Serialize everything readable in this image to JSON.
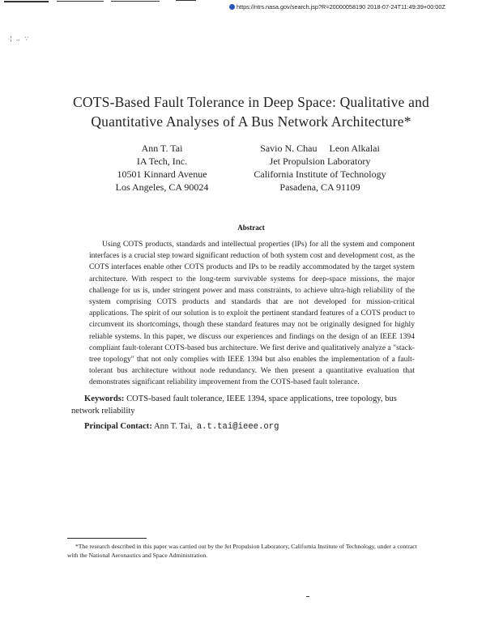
{
  "header": {
    "url_stamp": "https://ntrs.nasa.gov/search.jsp?R=20000058190 2018-07-24T11:49:39+00:00Z",
    "icon": "ntrs-logo-icon"
  },
  "paper": {
    "title_line1": "COTS-Based Fault Tolerance in Deep Space: Qualitative and",
    "title_line2": "Quantitative Analyses of A Bus Network Architecture*",
    "authors_left": [
      "Ann T. Tai",
      "IA Tech, Inc.",
      "10501 Kinnard Avenue",
      "Los Angeles, CA 90024"
    ],
    "authors_right_names": "Savio N. Chau     Leon Alkalai",
    "authors_right": [
      "Jet Propulsion Laboratory",
      "California Institute of Technology",
      "Pasadena, CA 91109"
    ],
    "abstract_heading": "Abstract",
    "abstract": "Using COTS products, standards and intellectual properties (IPs) for all the system and component interfaces is a crucial step toward significant reduction of both system cost and development cost, as the COTS interfaces enable other COTS products and IPs to be readily accommodated by the target system architecture. With respect to the long-term survivable systems for deep-space missions, the major challenge for us is, under stringent power and mass constraints, to achieve ultra-high reliability of the system comprising COTS products and standards that are not developed for mission-critical applications. The spirit of our solution is to exploit the pertinent standard features of a COTS product to circumvent its shortcomings, though these standard features may not be originally designed for highly reliable systems. In this paper, we discuss our experiences and findings on the design of an IEEE 1394 compliant fault-tolerant COTS-based bus architecture. We first derive and qualitatively analyze a \"stack-tree topology\" that not only complies with IEEE 1394 but also enables the implementation of a fault-tolerant bus architecture without node redundancy. We then present a quantitative evaluation that demonstrates significant reliability improvement from the COTS-based fault tolerance.",
    "keywords_label": "Keywords:",
    "keywords": "COTS-based fault tolerance, IEEE 1394, space applications, tree topology, bus network reliability",
    "contact_label": "Principal Contact:",
    "contact_name": "Ann T. Tai,",
    "contact_email": "a.t.tai@ieee.org",
    "footnote": "*The research described in this paper was carried out by the Jet Propulsion Laboratory, California Institute of Technology, under a contract with the National Aeronautics and Space Administration."
  }
}
